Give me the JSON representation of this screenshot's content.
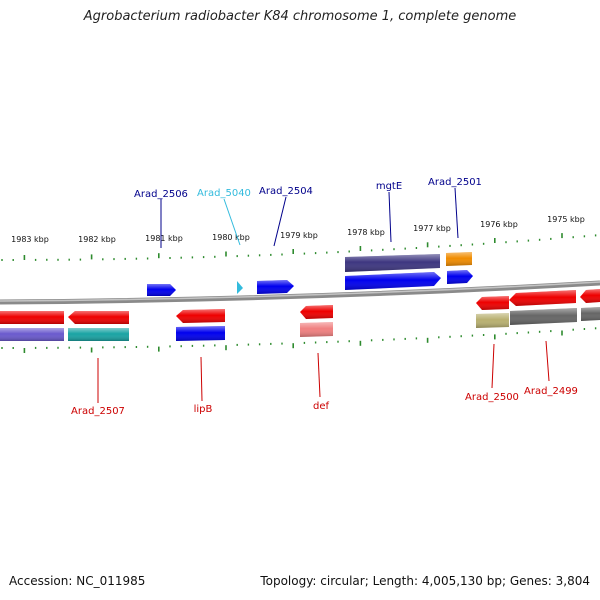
{
  "title": "Agrobacterium radiobacter K84 chromosome 1, complete genome",
  "footer": {
    "accession_label": "Accession:",
    "accession": "NC_011985",
    "topology_label": "Topology:",
    "topology": "circular",
    "length_label": "Length:",
    "length": "4,005,130 bp",
    "genes_label": "Genes:",
    "genes": "3,804"
  },
  "colors": {
    "backbone": "#8a8a8a",
    "tick": "#2e8b2e",
    "label_top": "#00008b",
    "label_top_alt": "#33bbdd",
    "label_bottom": "#cc0000"
  },
  "scale": {
    "unit": "kbp",
    "labels": [
      "1983 kbp",
      "1982 kbp",
      "1981 kbp",
      "1980 kbp",
      "1979 kbp",
      "1978 kbp",
      "1977 kbp",
      "1976 kbp",
      "1975 kbp"
    ]
  },
  "genes_top": [
    {
      "label": "Arad_2506",
      "color": "#0000ee",
      "row": "inner"
    },
    {
      "label": "Arad_5040",
      "color": "#33bbdd",
      "row": "inner"
    },
    {
      "label": "Arad_2504",
      "color": "#0000ee",
      "row": "inner"
    },
    {
      "label": "mgtE",
      "color": "#0000ee",
      "row": "inner"
    },
    {
      "label": "mgtE",
      "color": "#3d3680",
      "row": "outer"
    },
    {
      "label": "Arad_2501",
      "color": "#0000ee",
      "row": "inner"
    },
    {
      "label": "Arad_2501",
      "color": "#f08c00",
      "row": "outer"
    }
  ],
  "genes_bottom": [
    {
      "label": "Arad_2507",
      "color": "#ee0000",
      "row": "inner"
    },
    {
      "label": "Arad_2507",
      "color": "#19a3a3",
      "row": "outer"
    },
    {
      "label": "lipB",
      "color": "#ee0000",
      "row": "inner"
    },
    {
      "label": "lipB",
      "color": "#0000ee",
      "row": "outer"
    },
    {
      "label": "def",
      "color": "#ee0000",
      "row": "inner"
    },
    {
      "label": "def",
      "color": "#f08080",
      "row": "outer"
    },
    {
      "label": "Arad_2500",
      "color": "#ee0000",
      "row": "inner"
    },
    {
      "label": "Arad_2500",
      "color": "#b8b070",
      "row": "outer"
    },
    {
      "label": "Arad_2499",
      "color": "#ee0000",
      "row": "inner"
    },
    {
      "label": "Arad_2499",
      "color": "#666666",
      "row": "outer"
    }
  ],
  "visible_labels": {
    "top": [
      "Arad_2506",
      "Arad_5040",
      "Arad_2504",
      "mgtE",
      "Arad_2501"
    ],
    "bottom": [
      "Arad_2507",
      "lipB",
      "def",
      "Arad_2500",
      "Arad_2499"
    ]
  }
}
